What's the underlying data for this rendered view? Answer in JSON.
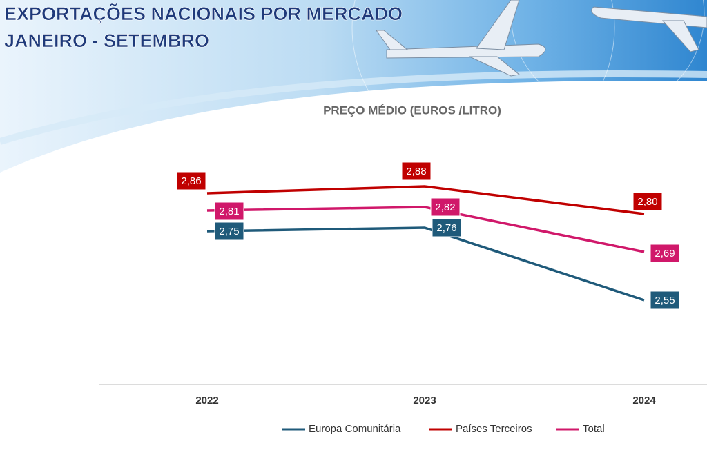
{
  "chart_data": {
    "type": "line",
    "title": "EXPORTAÇÕES NACIONAIS POR MERCADO",
    "subtitle": "JANEIRO - SETEMBRO",
    "chart_title": "PREÇO MÉDIO (EUROS /LITRO)",
    "categories": [
      "2022",
      "2023",
      "2024"
    ],
    "series": [
      {
        "name": "Europa Comunitária",
        "color": "#1f5a7a",
        "values": [
          2.75,
          2.76,
          2.55
        ],
        "value_labels": [
          "2,75",
          "2,76",
          "2,55"
        ]
      },
      {
        "name": "Países Terceiros",
        "color": "#c00000",
        "values": [
          2.86,
          2.88,
          2.8
        ],
        "value_labels": [
          "2,86",
          "2,88",
          "2,80"
        ]
      },
      {
        "name": "Total",
        "color": "#d0186a",
        "values": [
          2.81,
          2.82,
          2.69
        ],
        "value_labels": [
          "2,81",
          "2,82",
          "2,69"
        ]
      }
    ]
  }
}
